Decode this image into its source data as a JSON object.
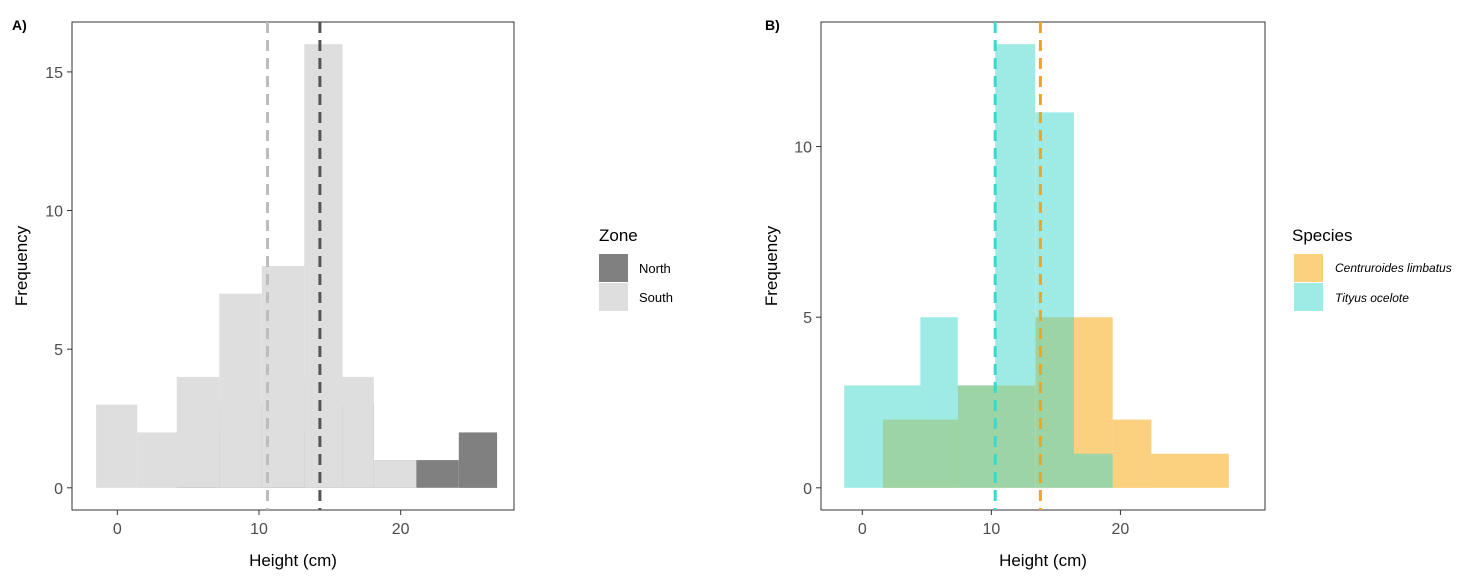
{
  "chart_data": [
    {
      "type": "histogram",
      "panel_tag": "A)",
      "xlabel": "Height (cm)",
      "ylabel": "Frequency",
      "xlim": [
        -3.2,
        28
      ],
      "ylim": [
        -0.8,
        16.8
      ],
      "xticks": [
        0,
        10,
        20
      ],
      "yticks": [
        0,
        5,
        10,
        15
      ],
      "xtick_labels": [
        "0",
        "10",
        "20"
      ],
      "ytick_labels": [
        "0",
        "5",
        "10",
        "15"
      ],
      "legend": {
        "title": "Zone",
        "position": "right",
        "entries": [
          "North",
          "South"
        ]
      },
      "series": [
        {
          "name": "North",
          "color": "#808080",
          "opacity": 1,
          "bins": [
            {
              "x0": 4.2,
              "x1": 7.2,
              "count": 2
            },
            {
              "x0": 7.2,
              "x1": 10.2,
              "count": 3
            },
            {
              "x0": 10.2,
              "x1": 13.2,
              "count": 2
            },
            {
              "x0": 13.2,
              "x1": 15.9,
              "count": 4
            },
            {
              "x0": 15.9,
              "x1": 18.1,
              "count": 3
            },
            {
              "x0": 18.1,
              "x1": 21.1,
              "count": 1
            },
            {
              "x0": 21.1,
              "x1": 24.1,
              "count": 1
            },
            {
              "x0": 24.1,
              "x1": 26.8,
              "count": 2
            }
          ],
          "mean_line": 14.3
        },
        {
          "name": "South",
          "color": "#dedede",
          "opacity": 1,
          "bins": [
            {
              "x0": -1.5,
              "x1": 1.4,
              "count": 3
            },
            {
              "x0": 1.4,
              "x1": 4.2,
              "count": 2
            },
            {
              "x0": 4.2,
              "x1": 7.2,
              "count": 4
            },
            {
              "x0": 7.2,
              "x1": 10.2,
              "count": 7
            },
            {
              "x0": 10.2,
              "x1": 13.2,
              "count": 8
            },
            {
              "x0": 13.2,
              "x1": 15.9,
              "count": 16
            },
            {
              "x0": 15.9,
              "x1": 18.1,
              "count": 4
            },
            {
              "x0": 18.1,
              "x1": 21.1,
              "count": 1
            }
          ],
          "mean_line": 10.6
        }
      ]
    },
    {
      "type": "histogram",
      "panel_tag": "B)",
      "xlabel": "Height (cm)",
      "ylabel": "Frequency",
      "xlim": [
        -3.2,
        31.2
      ],
      "ylim": [
        -0.65,
        13.65
      ],
      "xticks": [
        0,
        10,
        20
      ],
      "yticks": [
        0,
        5,
        10
      ],
      "xtick_labels": [
        "0",
        "10",
        "20"
      ],
      "ytick_labels": [
        "0",
        "5",
        "10"
      ],
      "legend": {
        "title": "Species",
        "position": "right",
        "entries": [
          "Centruroides limbatus",
          "Tityus ocelote"
        ]
      },
      "series": [
        {
          "name": "Centruroides limbatus",
          "color": "#f8a400",
          "opacity": 0.5,
          "bins": [
            {
              "x0": 1.6,
              "x1": 7.4,
              "count": 2
            },
            {
              "x0": 7.4,
              "x1": 10.3,
              "count": 3
            },
            {
              "x0": 10.3,
              "x1": 13.4,
              "count": 3
            },
            {
              "x0": 13.4,
              "x1": 16.4,
              "count": 5
            },
            {
              "x0": 16.4,
              "x1": 19.4,
              "count": 5
            },
            {
              "x0": 19.4,
              "x1": 22.4,
              "count": 2
            },
            {
              "x0": 22.4,
              "x1": 28.4,
              "count": 1
            }
          ],
          "mean_line": 13.8
        },
        {
          "name": "Tityus ocelote",
          "color": "#3dd8cd",
          "opacity": 0.5,
          "bins": [
            {
              "x0": -1.4,
              "x1": 4.5,
              "count": 3
            },
            {
              "x0": 4.5,
              "x1": 7.4,
              "count": 5
            },
            {
              "x0": 7.4,
              "x1": 10.3,
              "count": 3
            },
            {
              "x0": 10.3,
              "x1": 13.4,
              "count": 13
            },
            {
              "x0": 13.4,
              "x1": 16.4,
              "count": 11
            },
            {
              "x0": 16.4,
              "x1": 19.4,
              "count": 1
            }
          ],
          "mean_line": 10.3
        }
      ]
    }
  ]
}
